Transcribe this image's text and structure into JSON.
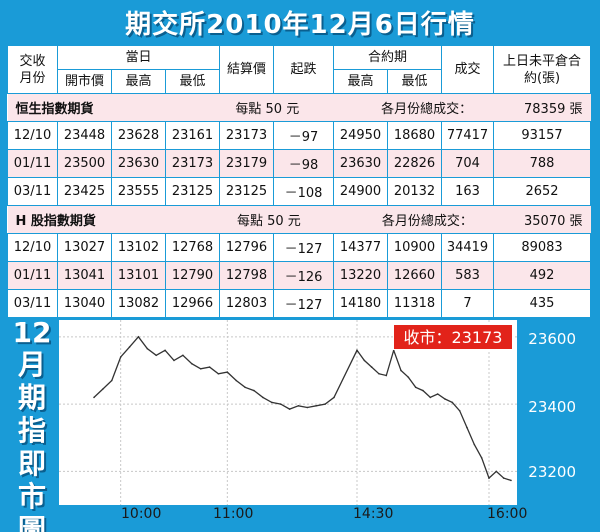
{
  "title": "期交所2010年12月6日行情",
  "table": {
    "headers": {
      "month": "交收月份",
      "day_group": "當日",
      "open": "開市價",
      "high": "最高",
      "low": "最低",
      "settle": "結算價",
      "change": "起跌",
      "contract_group": "合約期",
      "c_high": "最高",
      "c_low": "最低",
      "volume": "成交",
      "open_interest": "上日未平倉合約(張)"
    },
    "sections": [
      {
        "name": "恒生指數期貨",
        "point_value": "每點 50 元",
        "total_label": "各月份總成交：",
        "total": "78359 張",
        "rows": [
          [
            "12/10",
            "23448",
            "23628",
            "23161",
            "23173",
            "－97",
            "24950",
            "18680",
            "77417",
            "93157"
          ],
          [
            "01/11",
            "23500",
            "23630",
            "23173",
            "23179",
            "－98",
            "23630",
            "22826",
            "704",
            "788"
          ],
          [
            "03/11",
            "23425",
            "23555",
            "23125",
            "23125",
            "－108",
            "24900",
            "20132",
            "163",
            "2652"
          ]
        ]
      },
      {
        "name": "H 股指數期貨",
        "point_value": "每點 50 元",
        "total_label": "各月份總成交：",
        "total": "35070 張",
        "rows": [
          [
            "12/10",
            "13027",
            "13102",
            "12768",
            "12796",
            "－127",
            "14377",
            "10900",
            "34419",
            "89083"
          ],
          [
            "01/11",
            "13041",
            "13101",
            "12790",
            "12798",
            "－126",
            "13220",
            "12660",
            "583",
            "492"
          ],
          [
            "03/11",
            "13040",
            "13082",
            "12966",
            "12803",
            "－127",
            "14180",
            "11318",
            "7",
            "435"
          ]
        ]
      }
    ]
  },
  "chart": {
    "side_title_num": "12",
    "side_title_chars": [
      "月",
      "期",
      "指",
      "即",
      "市",
      "圖"
    ],
    "close_label": "收市：23173",
    "y_ticks": [
      "23600",
      "23400",
      "23200"
    ],
    "x_ticks": [
      "10:00",
      "11:00",
      "14:30",
      "16:00"
    ],
    "colors": {
      "accent": "#1a9bd7",
      "close_box": "#e2231a"
    }
  },
  "chart_data": {
    "type": "line",
    "title": "",
    "xlabel": "",
    "ylabel": "",
    "ylim": [
      23100,
      23650
    ],
    "x_ticks": [
      "10:00",
      "11:00",
      "14:30",
      "16:00"
    ],
    "series": [
      {
        "x": [
          "09:45",
          "09:50",
          "09:55",
          "10:00",
          "10:05",
          "10:10",
          "10:15",
          "10:20",
          "10:25",
          "10:30",
          "10:35",
          "10:40",
          "10:45",
          "10:50",
          "10:55",
          "11:00",
          "11:05",
          "11:10",
          "11:15",
          "11:20",
          "11:25",
          "11:30",
          "11:35",
          "11:40",
          "11:45",
          "11:50",
          "11:55",
          "12:00",
          "14:30",
          "14:35",
          "14:40",
          "14:45",
          "14:50",
          "14:55",
          "15:00",
          "15:05",
          "15:10",
          "15:15",
          "15:20",
          "15:25",
          "15:30",
          "15:35",
          "15:40",
          "15:45",
          "15:50",
          "15:55",
          "16:00",
          "16:05",
          "16:10",
          "16:15"
        ],
        "values": [
          23420,
          23445,
          23470,
          23540,
          23570,
          23600,
          23565,
          23545,
          23560,
          23530,
          23545,
          23520,
          23505,
          23510,
          23490,
          23495,
          23470,
          23450,
          23440,
          23420,
          23405,
          23400,
          23385,
          23395,
          23390,
          23395,
          23400,
          23420,
          23560,
          23530,
          23510,
          23490,
          23485,
          23560,
          23500,
          23480,
          23450,
          23440,
          23420,
          23430,
          23415,
          23405,
          23380,
          23330,
          23280,
          23240,
          23180,
          23200,
          23180,
          23173
        ]
      }
    ]
  }
}
